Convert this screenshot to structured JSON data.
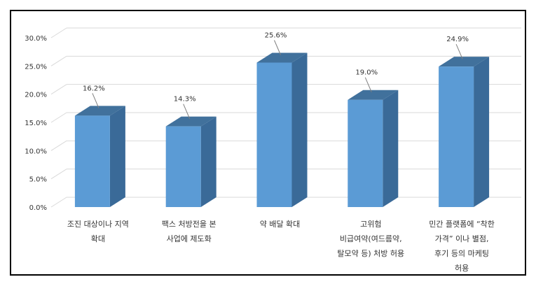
{
  "chart_data": {
    "type": "bar",
    "three_d": true,
    "categories": [
      [
        "조진 대상이나 지역",
        "확대"
      ],
      [
        "팩스 처방전을 본",
        "사업에 제도화"
      ],
      [
        "약 배달 확대"
      ],
      [
        "고위험",
        "비급여약(여드름약,",
        "탈모약 등) 처방 허용"
      ],
      [
        "민간 플랫폼에 “착한",
        "가격” 이나 별점,",
        "후기 등의 마케팅",
        "허용"
      ]
    ],
    "values": [
      16.2,
      14.3,
      25.6,
      19.0,
      24.9
    ],
    "data_labels": [
      "16.2%",
      "14.3%",
      "25.6%",
      "19.0%",
      "24.9%"
    ],
    "y_ticks": [
      "0.0%",
      "5.0%",
      "10.0%",
      "15.0%",
      "20.0%",
      "25.0%",
      "30.0%"
    ],
    "ylim": [
      0,
      30
    ],
    "grid": true,
    "colors": {
      "bar_front": "#5b9bd5",
      "bar_side": "#3a6a98",
      "bar_top": "#41719c",
      "grid": "#d9d9d9"
    }
  }
}
